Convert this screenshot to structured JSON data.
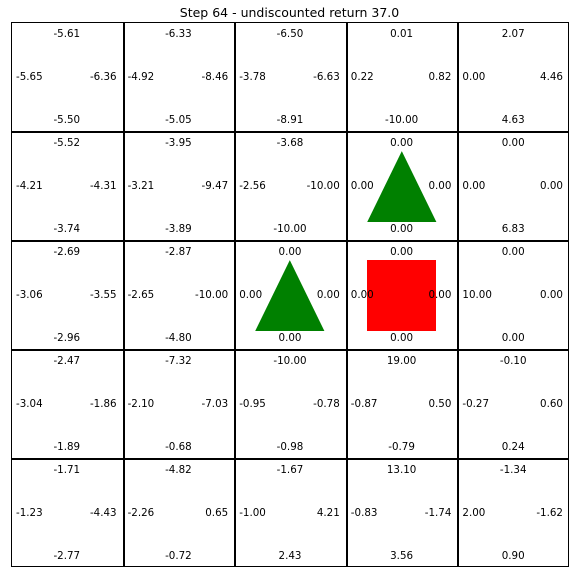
{
  "title": "Step 64 - undiscounted return 37.0",
  "colors": {
    "grid_line": "#000000",
    "goal_triangle": "#008000",
    "agent_square": "#ff0000",
    "background": "#ffffff"
  },
  "grid": {
    "rows": 5,
    "cols": 5,
    "cells": [
      [
        {
          "up": "-5.61",
          "left": "-5.65",
          "right": "-6.36",
          "down": "-5.50"
        },
        {
          "up": "-6.33",
          "left": "-4.92",
          "right": "-8.46",
          "down": "-5.05"
        },
        {
          "up": "-6.50",
          "left": "-3.78",
          "right": "-6.63",
          "down": "-8.91"
        },
        {
          "up": "0.01",
          "left": "0.22",
          "right": "0.82",
          "down": "-10.00"
        },
        {
          "up": "2.07",
          "left": "0.00",
          "right": "4.46",
          "down": "4.63"
        }
      ],
      [
        {
          "up": "-5.52",
          "left": "-4.21",
          "right": "-4.31",
          "down": "-3.74"
        },
        {
          "up": "-3.95",
          "left": "-3.21",
          "right": "-9.47",
          "down": "-3.89"
        },
        {
          "up": "-3.68",
          "left": "-2.56",
          "right": "-10.00",
          "down": "-10.00"
        },
        {
          "up": "0.00",
          "left": "0.00",
          "right": "0.00",
          "down": "0.00",
          "marker": "triangle"
        },
        {
          "up": "0.00",
          "left": "0.00",
          "right": "0.00",
          "down": "6.83"
        }
      ],
      [
        {
          "up": "-2.69",
          "left": "-3.06",
          "right": "-3.55",
          "down": "-2.96"
        },
        {
          "up": "-2.87",
          "left": "-2.65",
          "right": "-10.00",
          "down": "-4.80"
        },
        {
          "up": "0.00",
          "left": "0.00",
          "right": "0.00",
          "down": "0.00",
          "marker": "triangle"
        },
        {
          "up": "0.00",
          "left": "0.00",
          "right": "0.00",
          "down": "0.00",
          "marker": "square"
        },
        {
          "up": "0.00",
          "left": "10.00",
          "right": "0.00",
          "down": "0.00"
        }
      ],
      [
        {
          "up": "-2.47",
          "left": "-3.04",
          "right": "-1.86",
          "down": "-1.89"
        },
        {
          "up": "-7.32",
          "left": "-2.10",
          "right": "-7.03",
          "down": "-0.68"
        },
        {
          "up": "-10.00",
          "left": "-0.95",
          "right": "-0.78",
          "down": "-0.98"
        },
        {
          "up": "19.00",
          "left": "-0.87",
          "right": "0.50",
          "down": "-0.79"
        },
        {
          "up": "-0.10",
          "left": "-0.27",
          "right": "0.60",
          "down": "0.24"
        }
      ],
      [
        {
          "up": "-1.71",
          "left": "-1.23",
          "right": "-4.43",
          "down": "-2.77"
        },
        {
          "up": "-4.82",
          "left": "-2.26",
          "right": "0.65",
          "down": "-0.72"
        },
        {
          "up": "-1.67",
          "left": "-1.00",
          "right": "4.21",
          "down": "2.43"
        },
        {
          "up": "13.10",
          "left": "-0.83",
          "right": "-1.74",
          "down": "3.56"
        },
        {
          "up": "-1.34",
          "left": "2.00",
          "right": "-1.62",
          "down": "0.90"
        }
      ]
    ]
  }
}
